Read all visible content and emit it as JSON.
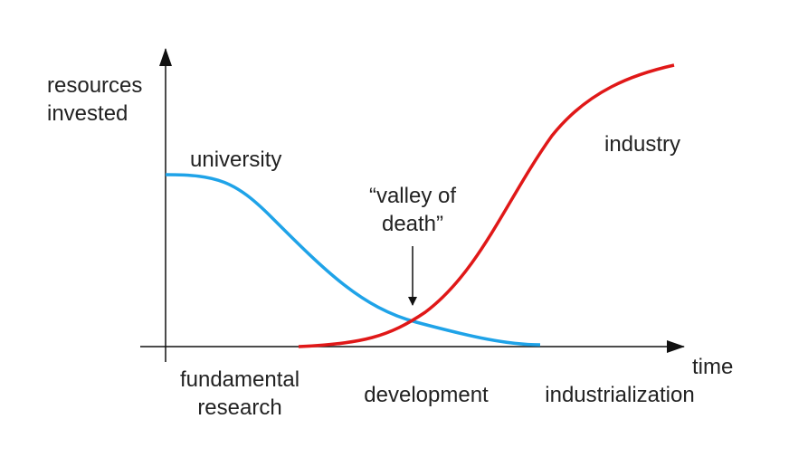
{
  "axes": {
    "y_label": [
      "resources",
      "invested"
    ],
    "x_label": "time"
  },
  "curves": [
    {
      "label": "university"
    },
    {
      "label": "industry"
    }
  ],
  "annotation": [
    "“valley of",
    "death”"
  ],
  "phases": [
    [
      "fundamental",
      "research"
    ],
    [
      "development"
    ],
    [
      "industrialization"
    ]
  ]
}
